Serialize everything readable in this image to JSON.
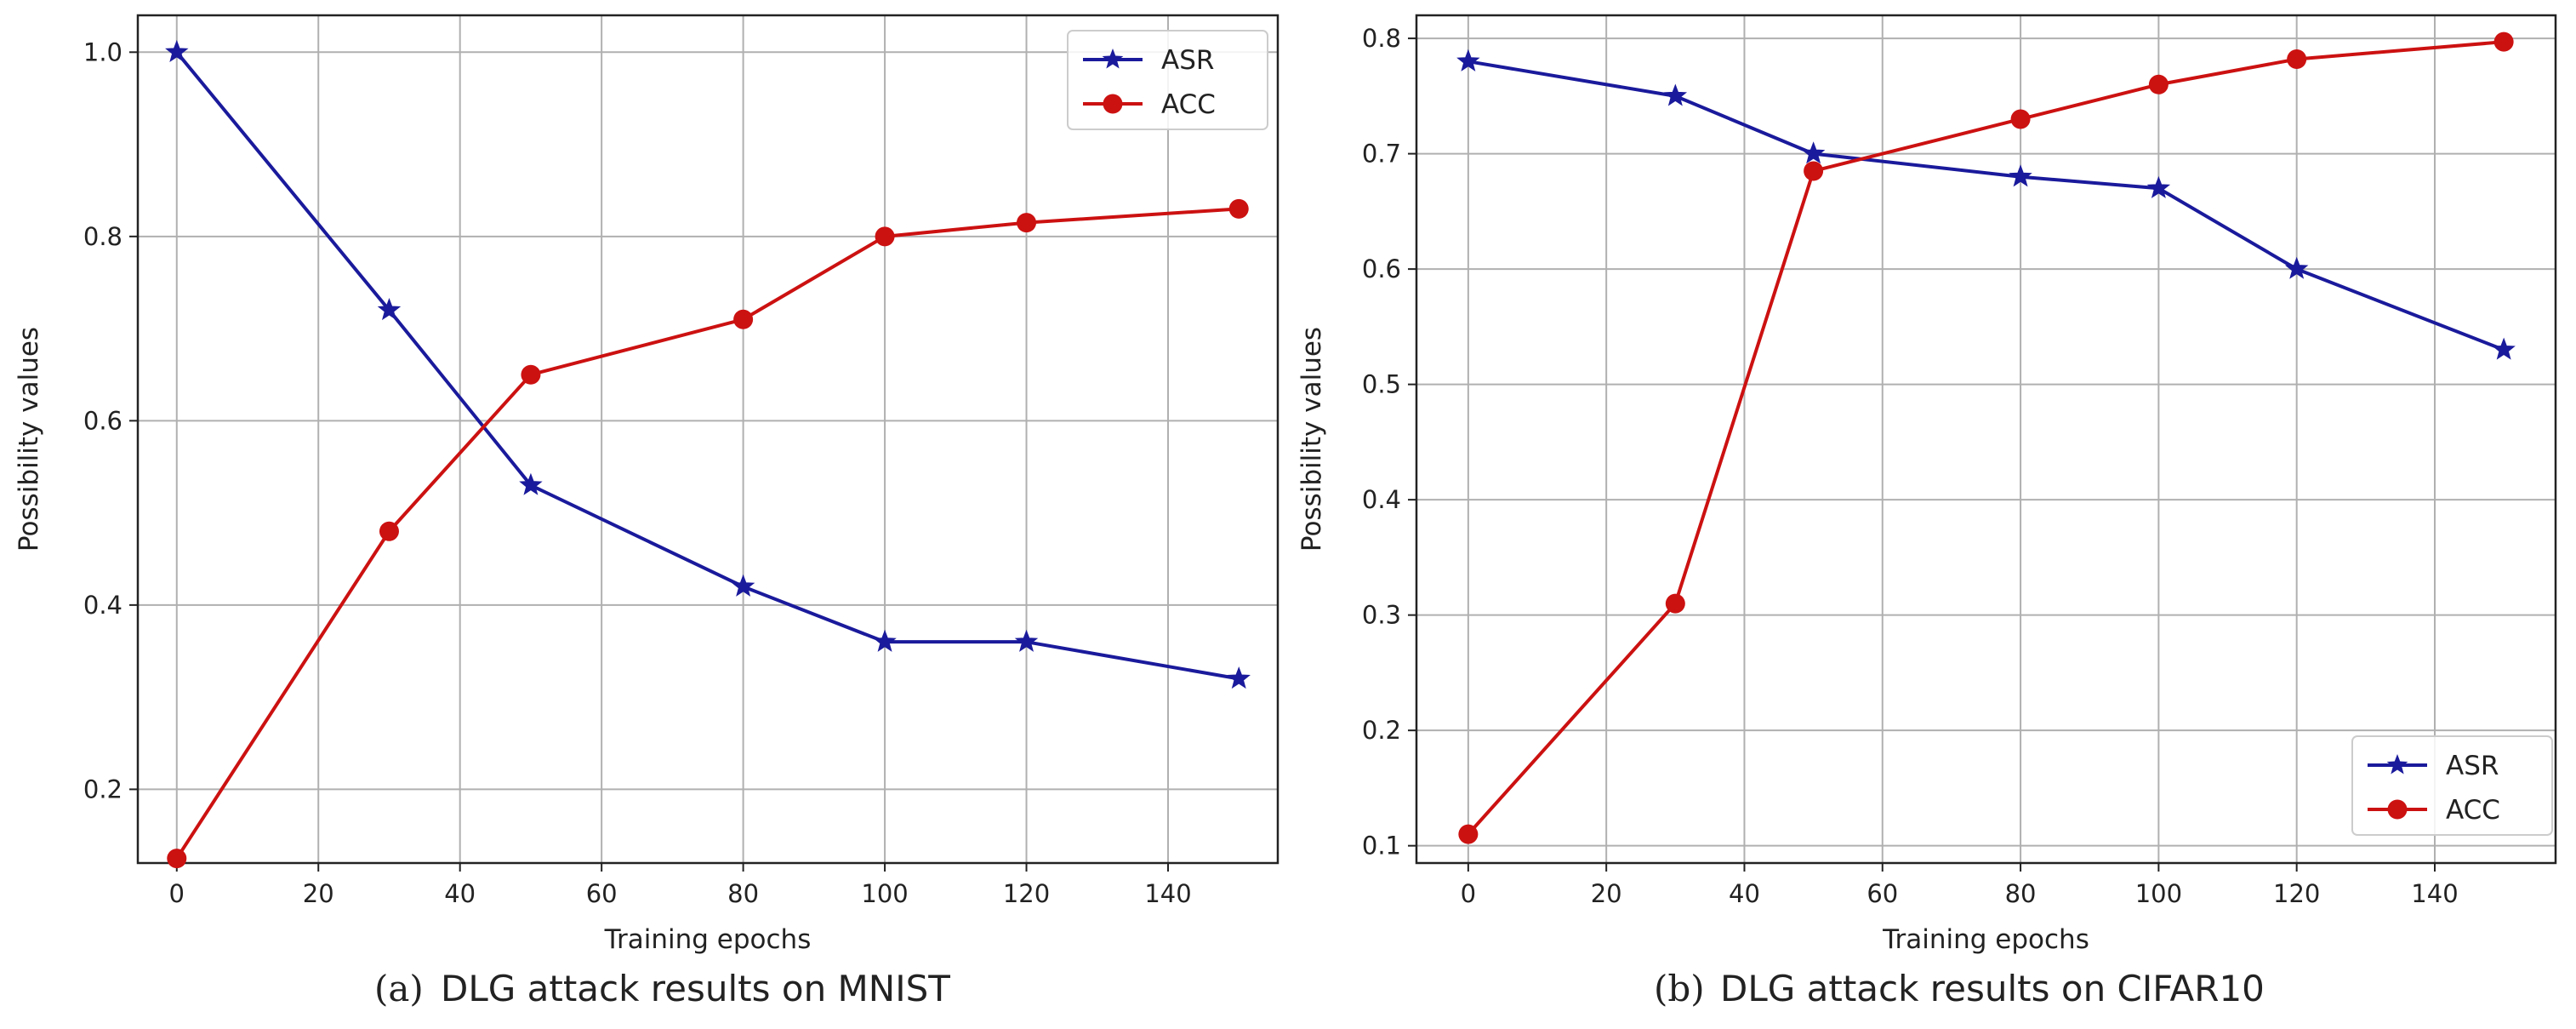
{
  "chart_data": [
    {
      "type": "line",
      "panel": "(a)",
      "title": "DLG attack results on MNIST",
      "xlabel": "Training epochs",
      "ylabel": "Possibility values",
      "xlim": [
        -5.5,
        155.5
      ],
      "ylim": [
        0.12,
        1.04
      ],
      "xticks": [
        0,
        20,
        40,
        60,
        80,
        100,
        120,
        140
      ],
      "yticks": [
        0.2,
        0.4,
        0.6,
        0.8,
        1.0
      ],
      "ytick_labels": [
        "0.2",
        "0.4",
        "0.6",
        "0.8",
        "1.0"
      ],
      "grid": true,
      "legend_position": "top-right",
      "x": [
        0,
        30,
        50,
        80,
        100,
        120,
        150
      ],
      "series": [
        {
          "name": "ASR",
          "color": "#1a1a9c",
          "marker": "star",
          "values": [
            1.0,
            0.72,
            0.53,
            0.42,
            0.36,
            0.36,
            0.32
          ]
        },
        {
          "name": "ACC",
          "color": "#cc1111",
          "marker": "circle",
          "values": [
            0.125,
            0.48,
            0.65,
            0.71,
            0.8,
            0.815,
            0.83
          ]
        }
      ]
    },
    {
      "type": "line",
      "panel": "(b)",
      "title": "DLG attack results on CIFAR10",
      "xlabel": "Training epochs",
      "ylabel": "Possibility values",
      "xlim": [
        -7.5,
        157.5
      ],
      "ylim": [
        0.085,
        0.82
      ],
      "xticks": [
        0,
        20,
        40,
        60,
        80,
        100,
        120,
        140
      ],
      "yticks": [
        0.1,
        0.2,
        0.3,
        0.4,
        0.5,
        0.6,
        0.7,
        0.8
      ],
      "ytick_labels": [
        "0.1",
        "0.2",
        "0.3",
        "0.4",
        "0.5",
        "0.6",
        "0.7",
        "0.8"
      ],
      "grid": true,
      "legend_position": "bottom-right",
      "x": [
        0,
        30,
        50,
        80,
        100,
        120,
        150
      ],
      "series": [
        {
          "name": "ASR",
          "color": "#1a1a9c",
          "marker": "star",
          "values": [
            0.78,
            0.75,
            0.7,
            0.68,
            0.67,
            0.6,
            0.53
          ]
        },
        {
          "name": "ACC",
          "color": "#cc1111",
          "marker": "circle",
          "values": [
            0.11,
            0.31,
            0.685,
            0.73,
            0.76,
            0.782,
            0.797
          ]
        }
      ]
    }
  ]
}
